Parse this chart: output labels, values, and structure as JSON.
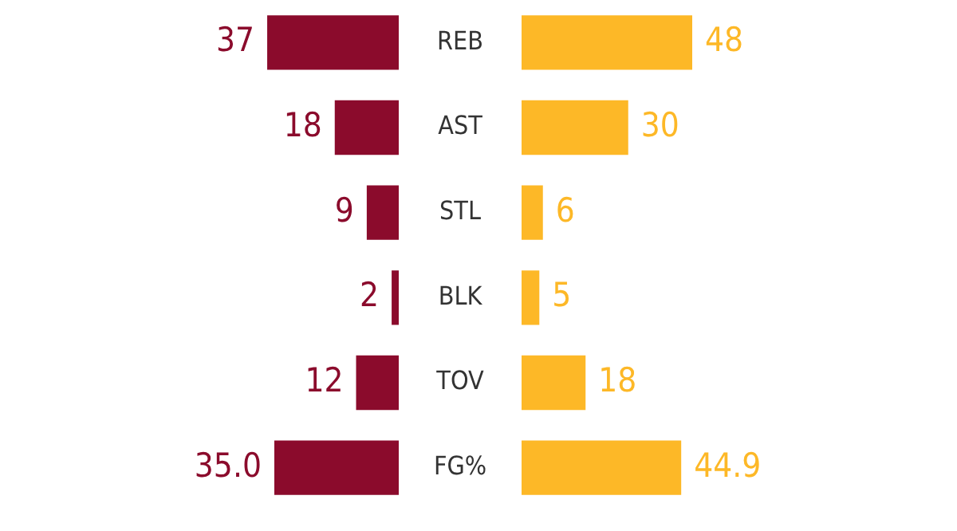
{
  "chart_data": [
    {
      "type": "bar",
      "orientation": "horizontal",
      "tick_labels": "y",
      "categories": [
        "REB",
        "AST",
        "STL",
        "BLK",
        "TOV",
        "FG%"
      ],
      "series": [
        {
          "color": "#8b0b2c",
          "values": [
            37,
            18,
            9,
            2,
            12,
            35.0
          ],
          "value_labels": [
            "37",
            "18",
            "9",
            "2",
            "12",
            "35.0"
          ]
        }
      ]
    },
    {
      "type": "bar",
      "orientation": "horizontal",
      "tick_labels": false,
      "categories": [
        null,
        null,
        null,
        null,
        null,
        null
      ],
      "series": [
        {
          "color": "#fdb827",
          "values": [
            48,
            30,
            6,
            5,
            18,
            44.9
          ],
          "value_labels": [
            "48",
            "30",
            "6",
            "5",
            "18",
            "44.9"
          ]
        }
      ]
    }
  ]
}
